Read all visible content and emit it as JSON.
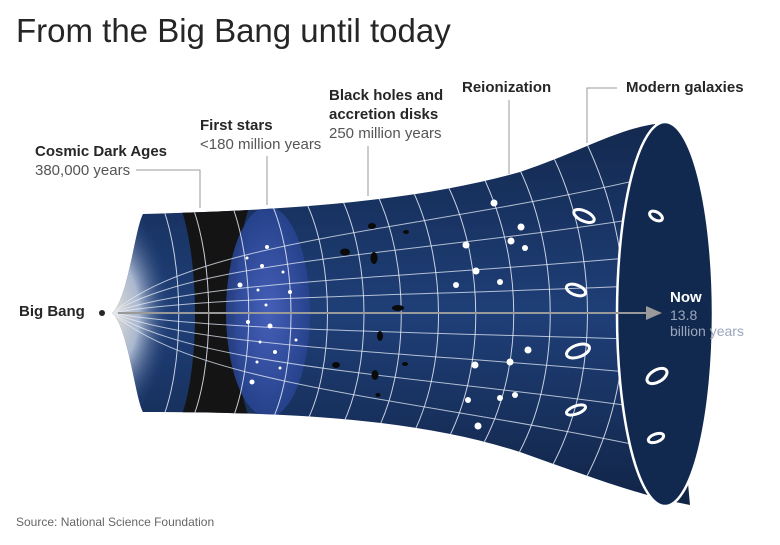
{
  "title": "From the Big Bang until today",
  "labels": {
    "big_bang": "Big Bang",
    "dark_ages": {
      "name": "Cosmic Dark Ages",
      "sub": "380,000 years"
    },
    "first_stars": {
      "name": "First stars",
      "sub": "<180 million years"
    },
    "black_holes": {
      "name_line1": "Black holes and",
      "name_line2": "accretion disks",
      "sub": "250 million years"
    },
    "reionization": {
      "name": "Reionization"
    },
    "modern_galaxies": {
      "name": "Modern galaxies"
    },
    "now": {
      "name": "Now",
      "sub_line1": "13.8",
      "sub_line2": "billion years"
    }
  },
  "source": "Source: National Science Foundation",
  "colors": {
    "shell": "#1d3a6b",
    "shell_dark": "#10264a",
    "grid": "#e8eef7",
    "dark_ages": "#151515",
    "first_stars_glow": "#3a55b0",
    "arrow": "#9a9a9a"
  }
}
